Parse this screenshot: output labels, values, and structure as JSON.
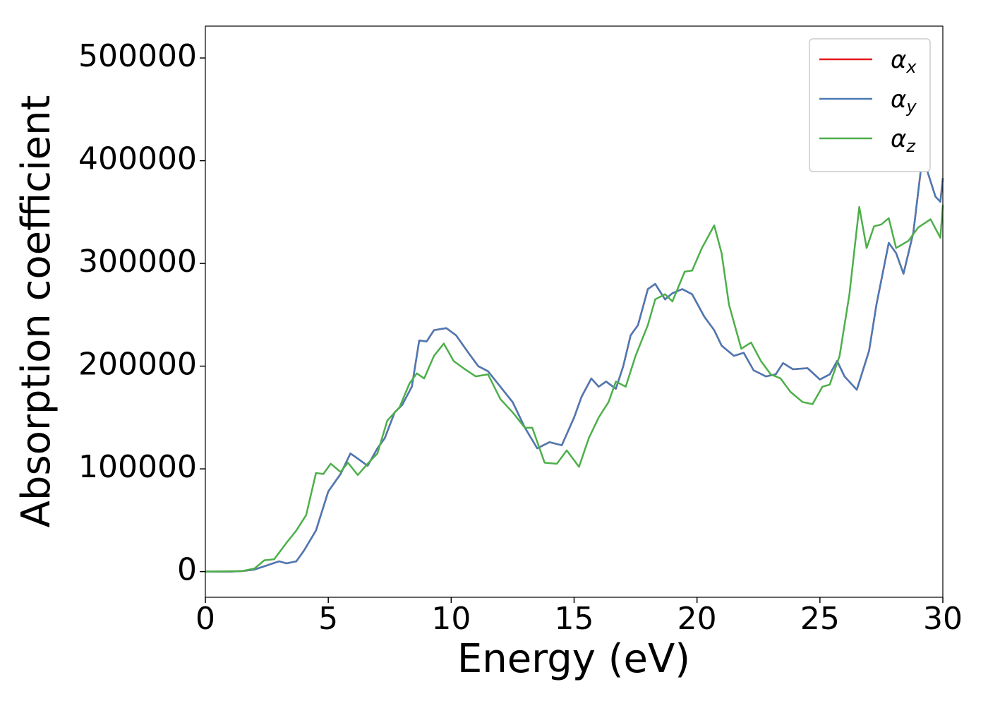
{
  "chart_data": {
    "type": "line",
    "xlabel": "Energy (eV)",
    "ylabel": "Absorption coefficient",
    "xlim": [
      0,
      30
    ],
    "xticks": [
      0,
      5,
      10,
      15,
      20,
      25,
      30
    ],
    "ylim": [
      -25000,
      531000
    ],
    "yticks": [
      0,
      100000,
      200000,
      300000,
      400000,
      500000
    ],
    "legend": "upper right",
    "series": [
      {
        "name": "αx",
        "color": "#e41a1c",
        "x": [
          0,
          1,
          1.5,
          2,
          2.5,
          3,
          3.3,
          3.7,
          4,
          4.5,
          5,
          5.5,
          5.9,
          6.2,
          6.6,
          7,
          7.3,
          7.7,
          8,
          8.4,
          8.7,
          9,
          9.3,
          9.8,
          10.2,
          10.7,
          11.1,
          11.5,
          12,
          12.5,
          13,
          13.5,
          14,
          14.5,
          15,
          15.3,
          15.7,
          16,
          16.3,
          16.7,
          17,
          17.3,
          17.6,
          18,
          18.3,
          18.7,
          19,
          19.4,
          19.8,
          20.3,
          20.7,
          21,
          21.5,
          21.9,
          22.3,
          22.8,
          23.2,
          23.5,
          23.9,
          24.5,
          25,
          25.4,
          25.7,
          26,
          26.5,
          27,
          27.3,
          27.8,
          28.1,
          28.4,
          28.8,
          29.1,
          29.3,
          29.7,
          29.9,
          30
        ],
        "values": [
          0,
          0,
          500,
          2000,
          6000,
          10000,
          8000,
          10000,
          20000,
          40000,
          78000,
          95000,
          115000,
          110000,
          103000,
          120000,
          130000,
          155000,
          162000,
          180000,
          225000,
          224000,
          235000,
          237000,
          230000,
          213000,
          200000,
          195000,
          180000,
          165000,
          140000,
          120000,
          126000,
          123000,
          150000,
          170000,
          188000,
          180000,
          185000,
          178000,
          200000,
          230000,
          240000,
          275000,
          280000,
          265000,
          271000,
          275000,
          270000,
          248000,
          235000,
          220000,
          210000,
          213000,
          196000,
          190000,
          192000,
          203000,
          197000,
          198000,
          187000,
          192000,
          205000,
          190000,
          177000,
          215000,
          260000,
          320000,
          310000,
          290000,
          330000,
          390000,
          395000,
          365000,
          360000,
          383000
        ]
      },
      {
        "name": "αy",
        "color": "#4a7ab5",
        "x": [
          0,
          1,
          1.5,
          2,
          2.5,
          3,
          3.3,
          3.7,
          4,
          4.5,
          5,
          5.5,
          5.9,
          6.2,
          6.6,
          7,
          7.3,
          7.7,
          8,
          8.4,
          8.7,
          9,
          9.3,
          9.8,
          10.2,
          10.7,
          11.1,
          11.5,
          12,
          12.5,
          13,
          13.5,
          14,
          14.5,
          15,
          15.3,
          15.7,
          16,
          16.3,
          16.7,
          17,
          17.3,
          17.6,
          18,
          18.3,
          18.7,
          19,
          19.4,
          19.8,
          20.3,
          20.7,
          21,
          21.5,
          21.9,
          22.3,
          22.8,
          23.2,
          23.5,
          23.9,
          24.5,
          25,
          25.4,
          25.7,
          26,
          26.5,
          27,
          27.3,
          27.8,
          28.1,
          28.4,
          28.8,
          29.1,
          29.3,
          29.7,
          29.9,
          30
        ],
        "values": [
          0,
          0,
          500,
          2000,
          6000,
          10000,
          8000,
          10000,
          20000,
          40000,
          78000,
          95000,
          115000,
          110000,
          103000,
          120000,
          130000,
          155000,
          162000,
          180000,
          225000,
          224000,
          235000,
          237000,
          230000,
          213000,
          200000,
          195000,
          180000,
          165000,
          140000,
          120000,
          126000,
          123000,
          150000,
          170000,
          188000,
          180000,
          185000,
          178000,
          200000,
          230000,
          240000,
          275000,
          280000,
          265000,
          271000,
          275000,
          270000,
          248000,
          235000,
          220000,
          210000,
          213000,
          196000,
          190000,
          192000,
          203000,
          197000,
          198000,
          187000,
          192000,
          205000,
          190000,
          177000,
          215000,
          260000,
          320000,
          310000,
          290000,
          330000,
          390000,
          395000,
          365000,
          360000,
          383000
        ]
      },
      {
        "name": "αz",
        "color": "#4daf4a",
        "x": [
          0,
          1.5,
          2,
          2.4,
          2.8,
          3.3,
          3.7,
          4.1,
          4.5,
          4.8,
          5.1,
          5.5,
          5.8,
          6.2,
          6.6,
          7,
          7.4,
          7.9,
          8.3,
          8.6,
          8.9,
          9.3,
          9.7,
          10.1,
          10.5,
          11,
          11.5,
          12,
          12.5,
          13,
          13.3,
          13.8,
          14.3,
          14.7,
          15.2,
          15.6,
          16,
          16.4,
          16.7,
          17.1,
          17.5,
          18,
          18.3,
          18.7,
          19,
          19.5,
          19.8,
          20.2,
          20.7,
          21,
          21.3,
          21.8,
          22.2,
          22.6,
          23,
          23.4,
          23.8,
          24.3,
          24.7,
          25.1,
          25.4,
          25.8,
          26.2,
          26.6,
          26.9,
          27.2,
          27.5,
          27.8,
          28.1,
          28.6,
          29,
          29.5,
          29.9,
          30
        ],
        "values": [
          0,
          500,
          3000,
          11000,
          12000,
          28000,
          40000,
          55000,
          96000,
          95000,
          105000,
          97000,
          106000,
          94000,
          105000,
          115000,
          147000,
          160000,
          183000,
          193000,
          188000,
          210000,
          222000,
          205000,
          198000,
          190000,
          192000,
          168000,
          155000,
          140000,
          140000,
          106000,
          105000,
          118000,
          102000,
          130000,
          150000,
          165000,
          185000,
          180000,
          210000,
          240000,
          265000,
          270000,
          263000,
          292000,
          293000,
          315000,
          337000,
          310000,
          260000,
          217000,
          223000,
          205000,
          192000,
          188000,
          175000,
          165000,
          163000,
          180000,
          182000,
          210000,
          270000,
          355000,
          315000,
          336000,
          338000,
          344000,
          315000,
          322000,
          335000,
          343000,
          325000,
          357000
        ]
      }
    ]
  }
}
